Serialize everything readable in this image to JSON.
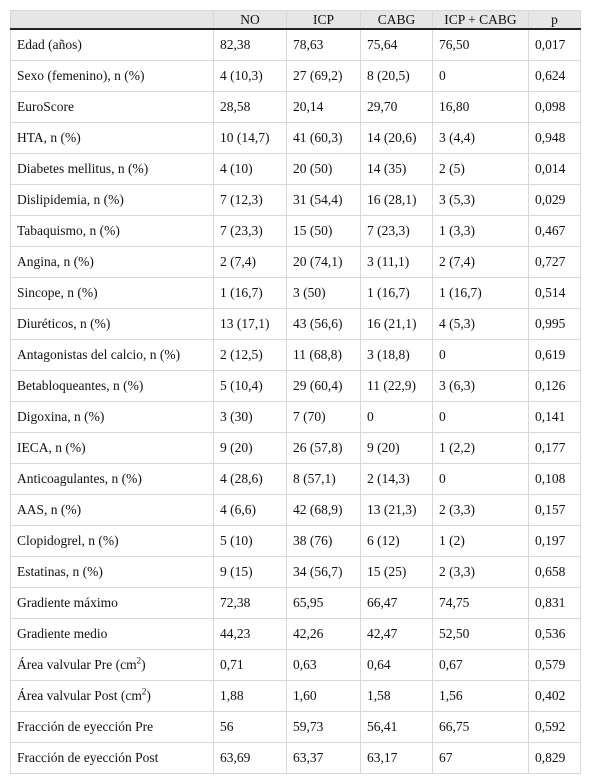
{
  "table": {
    "columns": [
      "NO",
      "ICP",
      "CABG",
      "ICP + CABG",
      "p"
    ],
    "rows": [
      [
        "Edad (años)",
        "82,38",
        "78,63",
        "75,64",
        "76,50",
        "0,017"
      ],
      [
        "Sexo (femenino), n (%)",
        "4 (10,3)",
        "27 (69,2)",
        "8 (20,5)",
        "0",
        "0,624"
      ],
      [
        "EuroScore",
        "28,58",
        "20,14",
        "29,70",
        "16,80",
        "0,098"
      ],
      [
        "HTA, n (%)",
        "10 (14,7)",
        "41 (60,3)",
        "14 (20,6)",
        "3 (4,4)",
        "0,948"
      ],
      [
        "Diabetes mellitus, n (%)",
        "4 (10)",
        "20 (50)",
        "14 (35)",
        "2 (5)",
        "0,014"
      ],
      [
        "Dislipidemia, n (%)",
        "7 (12,3)",
        "31 (54,4)",
        "16 (28,1)",
        "3 (5,3)",
        "0,029"
      ],
      [
        "Tabaquismo, n (%)",
        "7 (23,3)",
        "15 (50)",
        "7 (23,3)",
        "1 (3,3)",
        "0,467"
      ],
      [
        "Angina, n (%)",
        "2 (7,4)",
        "20 (74,1)",
        "3 (11,1)",
        "2 (7,4)",
        "0,727"
      ],
      [
        "Sincope, n (%)",
        "1 (16,7)",
        "3 (50)",
        "1 (16,7)",
        "1 (16,7)",
        "0,514"
      ],
      [
        "Diuréticos, n (%)",
        "13 (17,1)",
        "43 (56,6)",
        "16 (21,1)",
        "4 (5,3)",
        "0,995"
      ],
      [
        "Antagonistas del calcio, n (%)",
        "2 (12,5)",
        "11 (68,8)",
        "3 (18,8)",
        "0",
        "0,619"
      ],
      [
        "Betabloqueantes, n (%)",
        "5 (10,4)",
        "29 (60,4)",
        "11 (22,9)",
        "3 (6,3)",
        "0,126"
      ],
      [
        "Digoxina, n (%)",
        "3 (30)",
        "7 (70)",
        "0",
        "0",
        "0,141"
      ],
      [
        "IECA, n (%)",
        "9 (20)",
        "26 (57,8)",
        "9 (20)",
        "1 (2,2)",
        "0,177"
      ],
      [
        "Anticoagulantes, n (%)",
        "4 (28,6)",
        "8 (57,1)",
        "2 (14,3)",
        "0",
        "0,108"
      ],
      [
        "AAS, n (%)",
        "4 (6,6)",
        "42 (68,9)",
        "13 (21,3)",
        "2 (3,3)",
        "0,157"
      ],
      [
        "Clopidogrel, n (%)",
        "5 (10)",
        "38 (76)",
        "6 (12)",
        "1 (2)",
        "0,197"
      ],
      [
        "Estatinas, n (%)",
        "9 (15)",
        "34 (56,7)",
        "15 (25)",
        "2 (3,3)",
        "0,658"
      ],
      [
        "Gradiente máximo",
        "72,38",
        "65,95",
        "66,47",
        "74,75",
        "0,831"
      ],
      [
        "Gradiente medio",
        "44,23",
        "42,26",
        "42,47",
        "52,50",
        "0,536"
      ],
      [
        {
          "text": "Área valvular Pre (cm",
          "sup": "2",
          "after": ")"
        },
        "0,71",
        "0,63",
        "0,64",
        "0,67",
        "0,579"
      ],
      [
        {
          "text": "Área valvular Post (cm",
          "sup": "2",
          "after": ")"
        },
        "1,88",
        "1,60",
        "1,58",
        "1,56",
        "0,402"
      ],
      [
        "Fracción de eyección Pre",
        "56",
        "59,73",
        "56,41",
        "66,75",
        "0,592"
      ],
      [
        "Fracción de eyección Post",
        "63,69",
        "63,37",
        "63,17",
        "67",
        "0,829"
      ]
    ]
  }
}
